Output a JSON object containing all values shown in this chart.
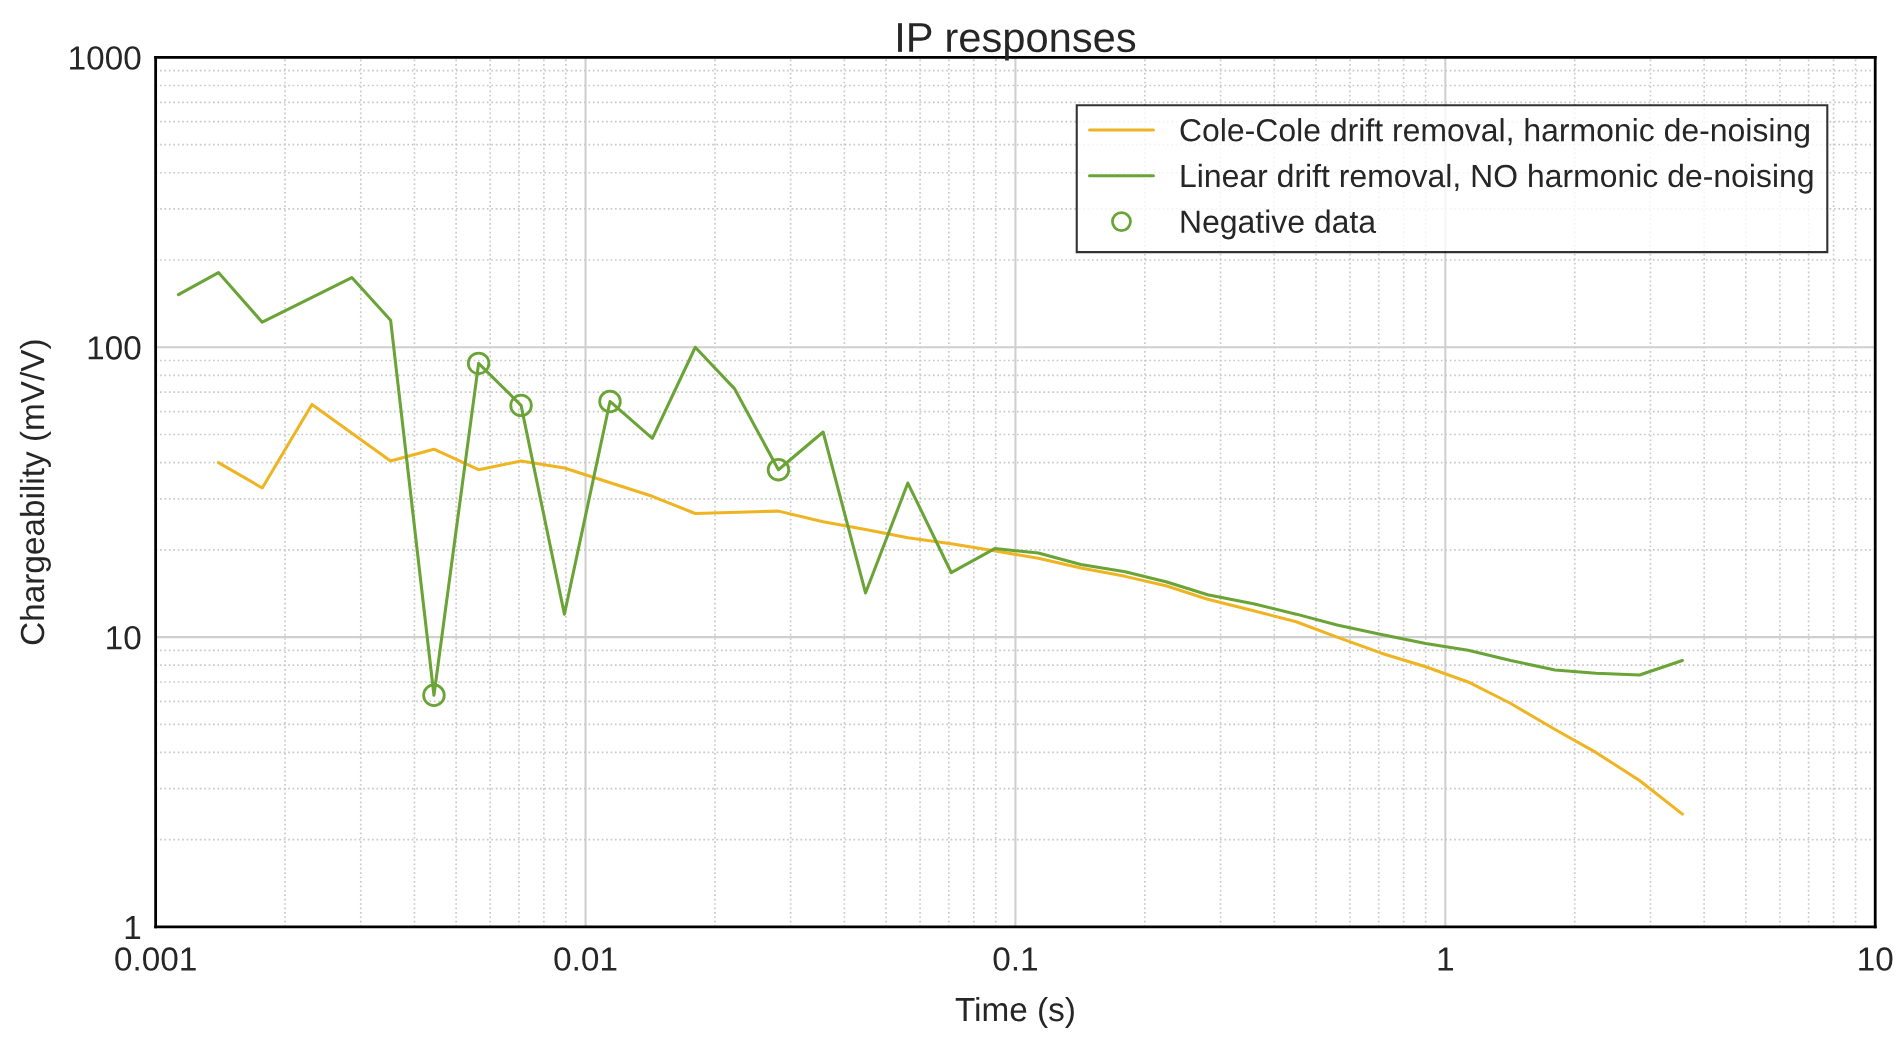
{
  "chart_data": {
    "type": "line",
    "title": "IP responses",
    "xlabel": "Time (s)",
    "ylabel": "Chargeability (mV/V)",
    "log": "xy",
    "xlim": [
      0.001,
      10
    ],
    "ylim": [
      1,
      1000
    ],
    "xticks": [
      {
        "value": 0.001,
        "label": "0.001"
      },
      {
        "value": 0.01,
        "label": "0.01"
      },
      {
        "value": 0.1,
        "label": "0.1"
      },
      1,
      10
    ],
    "yticks": [
      1,
      10,
      100,
      1000
    ],
    "grid": true,
    "legend": "top right",
    "marker": "none",
    "line_style": "solid",
    "series": [
      {
        "name": "Cole-Cole drift removal, harmonic de-noising",
        "color": "#eeb422",
        "x": [
          0.0014,
          0.00177,
          0.00231,
          0.00352,
          0.00444,
          0.00564,
          0.00708,
          0.00893,
          0.0143,
          0.018,
          0.0281,
          0.0357,
          0.0448,
          0.0562,
          0.0709,
          0.09,
          0.113,
          0.142,
          0.18,
          0.225,
          0.28,
          0.36,
          0.45,
          0.56,
          0.71,
          0.9,
          1.13,
          1.42,
          1.8,
          2.24,
          2.83,
          3.56
        ],
        "values": [
          40,
          32.7,
          63.5,
          40.5,
          44.5,
          37.8,
          40.5,
          38.3,
          30.6,
          26.7,
          27.2,
          25,
          23.5,
          22,
          21,
          19.8,
          18.7,
          17.3,
          16.2,
          15,
          13.5,
          12.3,
          11.3,
          10,
          8.8,
          7.9,
          7,
          5.9,
          4.8,
          4,
          3.2,
          2.45
        ]
      },
      {
        "name": "Linear drift removal, NO harmonic de-noising",
        "color": "#6aa336",
        "x": [
          0.00113,
          0.0014,
          0.00177,
          0.00286,
          0.00352,
          0.00444,
          0.00564,
          0.00708,
          0.00893,
          0.0114,
          0.0143,
          0.018,
          0.0222,
          0.0281,
          0.0357,
          0.0448,
          0.0562,
          0.0709,
          0.0895,
          0.113,
          0.142,
          0.18,
          0.225,
          0.28,
          0.36,
          0.45,
          0.56,
          0.71,
          0.9,
          1.13,
          1.42,
          1.8,
          2.24,
          2.83,
          3.56
        ],
        "values": [
          152,
          181,
          122,
          174,
          124,
          6.3,
          88,
          63,
          12,
          65,
          48.5,
          100,
          72,
          37.8,
          51,
          14.2,
          34,
          16.7,
          20.2,
          19.5,
          17.8,
          16.8,
          15.5,
          14,
          13,
          12,
          11,
          10.2,
          9.5,
          9,
          8.3,
          7.7,
          7.5,
          7.4,
          8.3
        ]
      },
      {
        "name": "Negative data",
        "color": "#6aa336",
        "type": "scatter",
        "marker": "circle",
        "x": [
          0.00444,
          0.00564,
          0.00708,
          0.0114,
          0.0281
        ],
        "values": [
          6.3,
          88,
          63,
          65,
          37.8
        ]
      }
    ]
  }
}
